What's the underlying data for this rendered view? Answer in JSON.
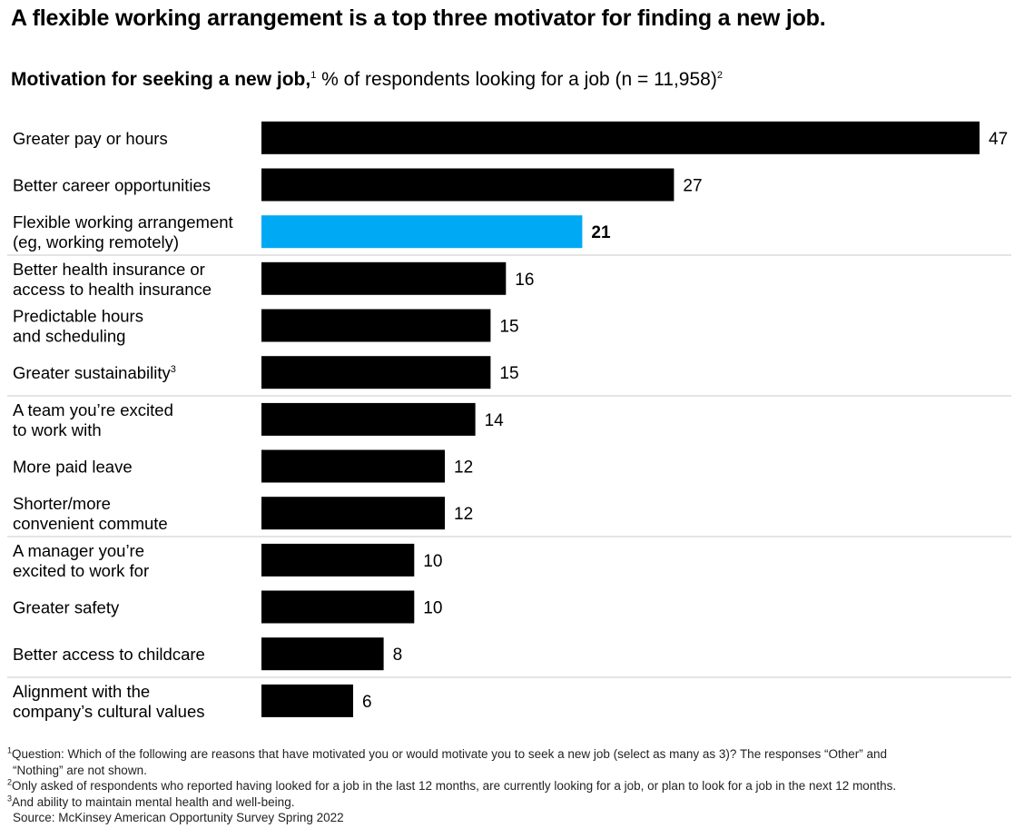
{
  "headline": "A flexible working arrangement is a top three motivator for finding a new job.",
  "subtitle": {
    "bold": "Motivation for seeking a new job,",
    "sup1": "1",
    "text": " % of respondents looking for a job (n = 11,958)",
    "sup2": "2"
  },
  "colors": {
    "default_bar": "#000000",
    "highlight_bar": "#00a9f4",
    "divider": "#c8c8c8"
  },
  "chart_data": {
    "type": "bar",
    "orientation": "horizontal",
    "categories": [
      {
        "lines": [
          "Greater pay or hours"
        ],
        "sup": ""
      },
      {
        "lines": [
          "Better career opportunities"
        ],
        "sup": ""
      },
      {
        "lines": [
          "Flexible working arrangement",
          "(eg, working remotely)"
        ],
        "sup": ""
      },
      {
        "lines": [
          "Better health insurance or",
          "access to health insurance"
        ],
        "sup": ""
      },
      {
        "lines": [
          "Predictable hours",
          "and scheduling"
        ],
        "sup": ""
      },
      {
        "lines": [
          "Greater sustainability"
        ],
        "sup": "3"
      },
      {
        "lines": [
          "A team you’re excited",
          "to work with"
        ],
        "sup": ""
      },
      {
        "lines": [
          "More paid leave"
        ],
        "sup": ""
      },
      {
        "lines": [
          "Shorter/more",
          "convenient commute"
        ],
        "sup": ""
      },
      {
        "lines": [
          "A manager you’re",
          "excited to work for"
        ],
        "sup": ""
      },
      {
        "lines": [
          "Greater safety"
        ],
        "sup": ""
      },
      {
        "lines": [
          "Better access to childcare"
        ],
        "sup": ""
      },
      {
        "lines": [
          "Alignment with the",
          "company’s cultural values"
        ],
        "sup": ""
      }
    ],
    "values": [
      47,
      27,
      21,
      16,
      15,
      15,
      14,
      12,
      12,
      10,
      10,
      8,
      6
    ],
    "highlight_index": 2,
    "dividers_after_index": [
      2,
      5,
      8,
      11
    ],
    "xlim": [
      0,
      47
    ]
  },
  "footnotes": {
    "f1_sup": "1",
    "f1_line1": "Question: Which of the following are reasons that have motivated you or would motivate you to seek a new job (select as many as 3)? The responses “Other” and",
    "f1_line2": "“Nothing” are not shown.",
    "f2_sup": "2",
    "f2": "Only asked of respondents who reported having looked for a job in the last 12 months, are currently looking for a job, or plan to look for a job in the next 12 months.",
    "f3_sup": "3",
    "f3": "And ability to maintain mental health and well-being.",
    "source": "Source: McKinsey American Opportunity Survey Spring 2022"
  }
}
